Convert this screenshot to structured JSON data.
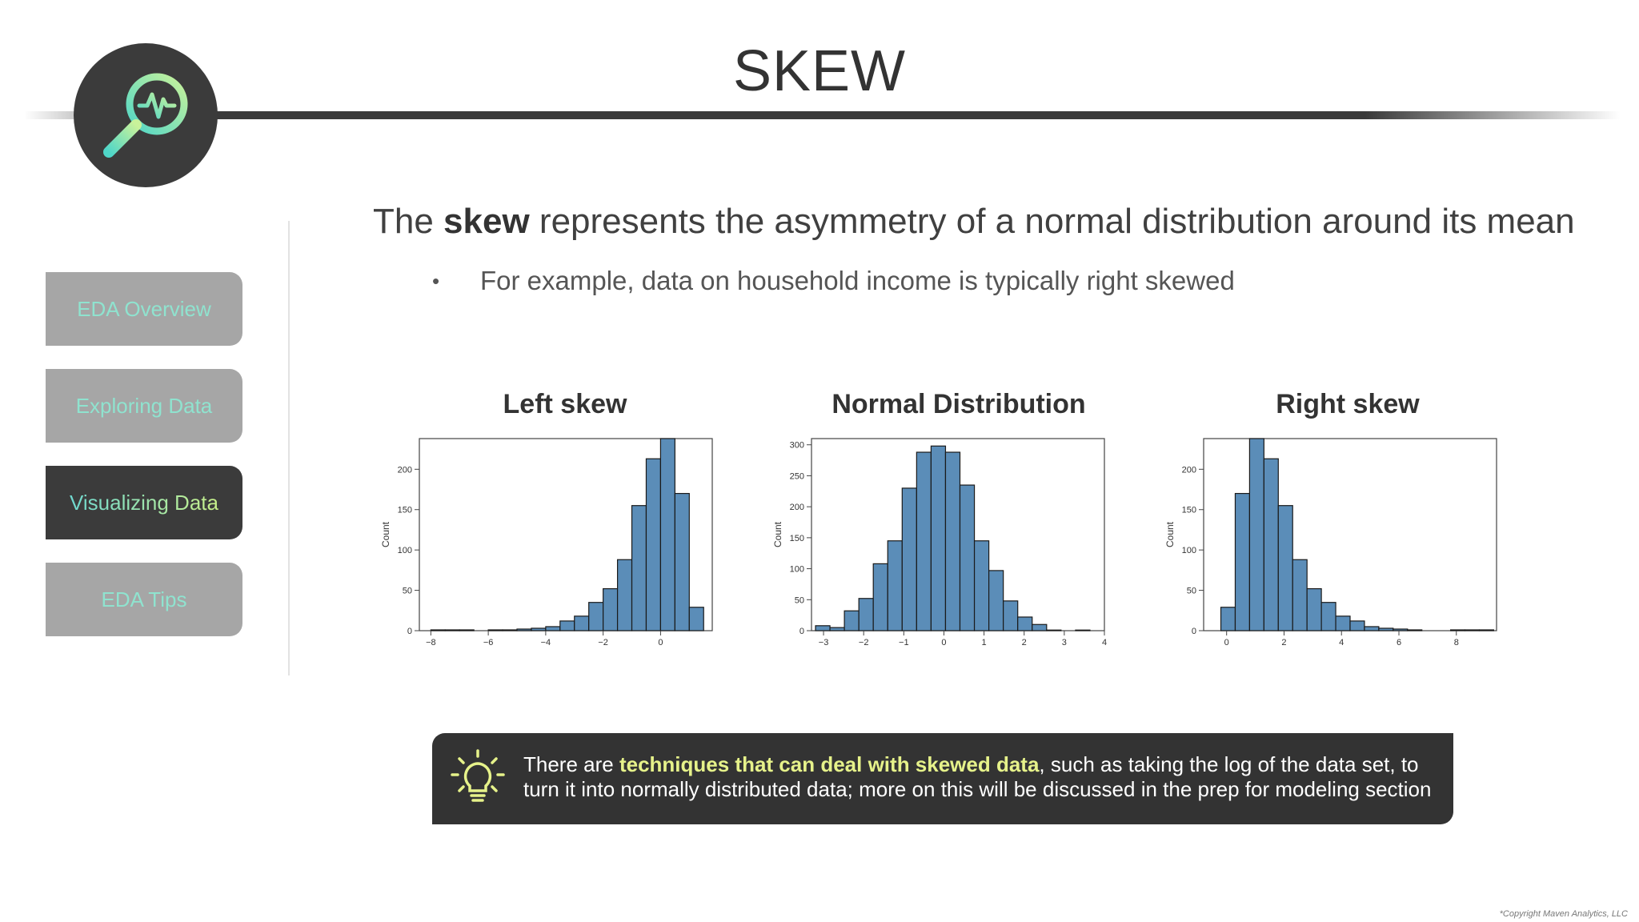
{
  "slide": {
    "title": "SKEW",
    "headline_pre": "The ",
    "headline_bold": "skew",
    "headline_post": " represents the asymmetry of a normal distribution around its mean",
    "bullet_mark": "•",
    "bullet": "For example, data on household income is typically right skewed",
    "copyright": "*Copyright Maven Analytics, LLC"
  },
  "sidebar": {
    "items": [
      {
        "label": "EDA Overview",
        "active": false
      },
      {
        "label": "Exploring Data",
        "active": false
      },
      {
        "label": "Visualizing Data",
        "active": true
      },
      {
        "label": "EDA Tips",
        "active": false
      }
    ]
  },
  "note": {
    "icon": "lightbulb-icon",
    "pre": "There are ",
    "highlight": "techniques that can deal with skewed data",
    "post": ", such as taking the log of the data set, to turn it into normally distributed data; more on this will be discussed in the prep for modeling section"
  },
  "colors": {
    "bar_fill": "#5b8db8",
    "bar_edge": "#1a1a1a",
    "dark_panel": "#3b3b3b",
    "nav_inactive": "#a6a6a6",
    "accent_teal": "#8fe3cf",
    "highlight_yellow": "#e6f28a"
  },
  "chart_data": [
    {
      "type": "bar",
      "title": "Left skew",
      "xlabel": "",
      "ylabel": "Count",
      "xlim": [
        -8.4,
        1.8
      ],
      "ylim": [
        0,
        238
      ],
      "xticks": [
        -8,
        -6,
        -4,
        -2,
        0
      ],
      "yticks": [
        0,
        50,
        100,
        150,
        200
      ],
      "bin_width": 0.5,
      "bins_start": [
        -8.0,
        -7.5,
        -7.0,
        -6.5,
        -6.0,
        -5.5,
        -5.0,
        -4.5,
        -4.0,
        -3.5,
        -3.0,
        -2.5,
        -2.0,
        -1.5,
        -1.0,
        -0.5,
        0.0,
        0.5,
        1.0
      ],
      "values": [
        1,
        1,
        1,
        0,
        1,
        1,
        2,
        3,
        5,
        12,
        18,
        35,
        52,
        88,
        155,
        213,
        238,
        170,
        29
      ]
    },
    {
      "type": "bar",
      "title": "Normal Distribution",
      "xlabel": "",
      "ylabel": "Count",
      "xlim": [
        -3.3,
        4.0
      ],
      "ylim": [
        0,
        310
      ],
      "xticks": [
        -3,
        -2,
        -1,
        0,
        1,
        2,
        3,
        4
      ],
      "yticks": [
        0,
        50,
        100,
        150,
        200,
        250,
        300
      ],
      "bin_width": 0.36,
      "bins_start": [
        -3.2,
        -2.84,
        -2.48,
        -2.12,
        -1.76,
        -1.4,
        -1.04,
        -0.68,
        -0.32,
        0.04,
        0.4,
        0.76,
        1.12,
        1.48,
        1.84,
        2.2,
        2.56,
        2.92,
        3.28
      ],
      "values": [
        8,
        5,
        32,
        52,
        108,
        145,
        230,
        288,
        298,
        288,
        235,
        145,
        97,
        48,
        22,
        10,
        1,
        0,
        1
      ]
    },
    {
      "type": "bar",
      "title": "Right skew",
      "xlabel": "",
      "ylabel": "Count",
      "xlim": [
        -0.8,
        9.4
      ],
      "ylim": [
        0,
        238
      ],
      "xticks": [
        0,
        2,
        4,
        6,
        8
      ],
      "yticks": [
        0,
        50,
        100,
        150,
        200
      ],
      "bin_width": 0.5,
      "bins_start": [
        -0.2,
        0.3,
        0.8,
        1.3,
        1.8,
        2.3,
        2.8,
        3.3,
        3.8,
        4.3,
        4.8,
        5.3,
        5.8,
        6.3,
        6.8,
        7.3,
        7.8,
        8.3,
        8.8
      ],
      "values": [
        29,
        170,
        238,
        213,
        155,
        88,
        52,
        35,
        18,
        12,
        5,
        3,
        2,
        1,
        0,
        0,
        1,
        1,
        1
      ]
    }
  ]
}
